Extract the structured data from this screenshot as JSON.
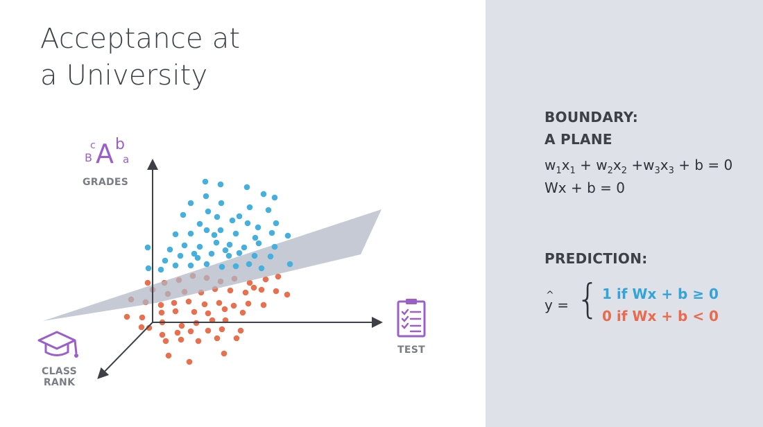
{
  "title": {
    "line1": "Acceptance at",
    "line2": "a University"
  },
  "axes": {
    "grades_label": "GRADES",
    "test_label": "TEST",
    "class_rank_line1": "CLASS",
    "class_rank_line2": "RANK"
  },
  "grades_icon": {
    "b_small": "B",
    "c_small": "c",
    "a_big": "A",
    "b_sup": "b",
    "a_sub": "a"
  },
  "boundary": {
    "heading1": "BOUNDARY:",
    "heading2": "A PLANE",
    "eq1": {
      "w1": "w",
      "s1": "1",
      "x1": "x",
      "s2": "1",
      "plus1": " + w",
      "s3": "2",
      "x2": "x",
      "s4": "2",
      "plus2": " +w",
      "s5": "3",
      "x3": "x",
      "s6": "3",
      "rest": " + b = 0"
    },
    "eq2": "Wx + b = 0"
  },
  "prediction": {
    "heading": "PREDICTION:",
    "yhat": "y =",
    "hat": "^",
    "case1": "1 if Wx + b ≥ 0",
    "case2": "0 if Wx + b < 0"
  },
  "colors": {
    "positive": "#45b0de",
    "negative": "#e8704f",
    "plane": "#aeb6c5",
    "axis": "#3d4147",
    "icon": "#9b5fc8",
    "panel": "#dee1e8"
  },
  "icons": [
    "grades-icon",
    "test-clipboard-icon",
    "graduation-cap-icon"
  ]
}
